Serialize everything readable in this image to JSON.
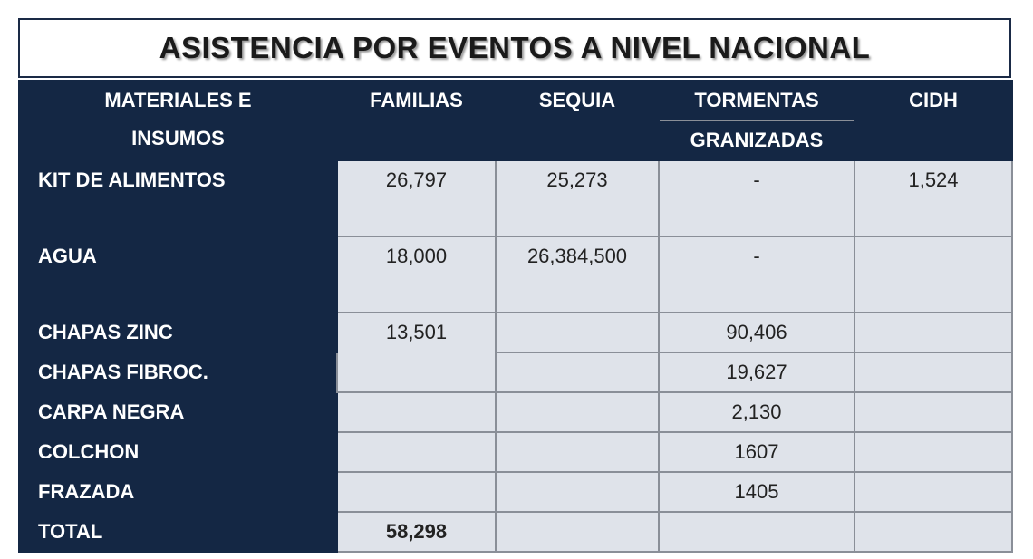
{
  "title": "ASISTENCIA POR EVENTOS A NIVEL NACIONAL",
  "headers": {
    "materiales_line1": "MATERIALES E",
    "materiales_line2": "INSUMOS",
    "familias": "FAMILIAS",
    "sequia": "SEQUIA",
    "tormentas": "TORMENTAS",
    "granizadas": "GRANIZADAS",
    "cidh": "CIDH"
  },
  "rows": {
    "kit": {
      "label": "KIT DE ALIMENTOS",
      "familias": "26,797",
      "sequia": "25,273",
      "tormentas": "-",
      "cidh": "1,524"
    },
    "agua": {
      "label": "AGUA",
      "familias": "18,000",
      "sequia": "26,384,500",
      "tormentas": "-",
      "cidh": ""
    },
    "chapas_zinc": {
      "label": "CHAPAS ZINC",
      "familias": "13,501",
      "sequia": "",
      "tormentas": "90,406",
      "cidh": ""
    },
    "chapas_fibroc": {
      "label": "CHAPAS FIBROC.",
      "sequia": "",
      "tormentas": "19,627",
      "cidh": ""
    },
    "carpa": {
      "label": "CARPA NEGRA",
      "familias": "",
      "sequia": "",
      "tormentas": "2,130",
      "cidh": ""
    },
    "colchon": {
      "label": "COLCHON",
      "familias": "",
      "sequia": "",
      "tormentas": "1607",
      "cidh": ""
    },
    "frazada": {
      "label": "FRAZADA",
      "familias": "",
      "sequia": "",
      "tormentas": "1405",
      "cidh": ""
    },
    "total": {
      "label": "TOTAL",
      "familias": "58,298",
      "sequia": "",
      "tormentas": "",
      "cidh": ""
    }
  }
}
